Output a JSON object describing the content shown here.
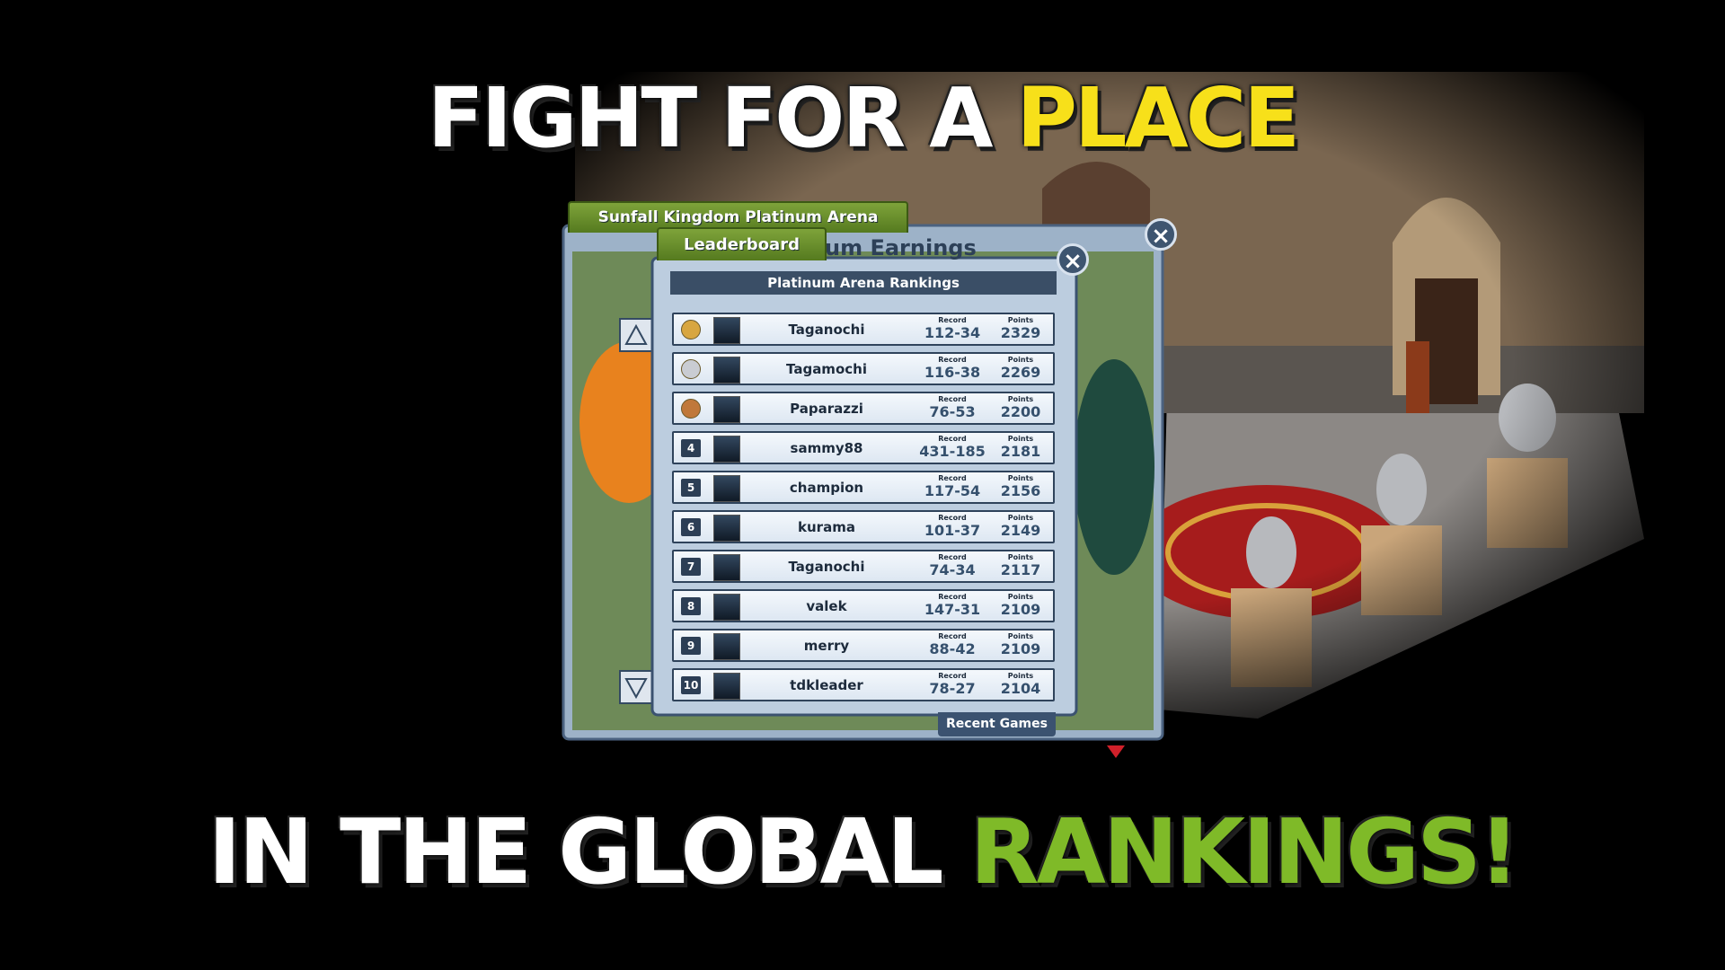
{
  "headline_top": {
    "white": "FIGHT FOR A",
    "highlight": "PLACE"
  },
  "headline_bottom": {
    "white": "IN THE GLOBAL",
    "highlight": "RANKINGS!"
  },
  "arena_tab": "Sunfall Kingdom Platinum Arena",
  "back_title": "um Earnings",
  "leaderboard_tab": "Leaderboard",
  "panel_title": "Platinum Arena Rankings",
  "recent_games": "Recent Games",
  "labels": {
    "record": "Record",
    "points": "Points"
  },
  "rankings": [
    {
      "medal": "#d8a640",
      "name": "Taganochi",
      "record": "112-34",
      "points": 2329
    },
    {
      "medal": "#c9ccd2",
      "name": "Tagamochi",
      "record": "116-38",
      "points": 2269
    },
    {
      "medal": "#c0783a",
      "name": "Paparazzi",
      "record": "76-53",
      "points": 2200
    },
    {
      "rank": 4,
      "name": "sammy88",
      "record": "431-185",
      "points": 2181
    },
    {
      "rank": 5,
      "name": "champion",
      "record": "117-54",
      "points": 2156
    },
    {
      "rank": 6,
      "name": "kurama",
      "record": "101-37",
      "points": 2149
    },
    {
      "rank": 7,
      "name": "Taganochi",
      "record": "74-34",
      "points": 2117
    },
    {
      "rank": 8,
      "name": "valek",
      "record": "147-31",
      "points": 2109
    },
    {
      "rank": 9,
      "name": "merry",
      "record": "88-42",
      "points": 2109
    },
    {
      "rank": 10,
      "name": "tdkleader",
      "record": "78-27",
      "points": 2104
    }
  ]
}
